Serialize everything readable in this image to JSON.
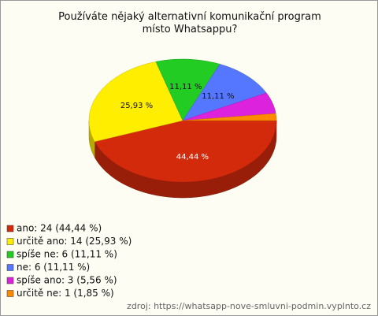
{
  "chart_data": {
    "type": "pie3d",
    "title": "Používáte nějaký alternativní komunikační program místo Whatsappu?",
    "categories": [
      "ano: 24 (44,44 %)",
      "určitě ano: 14 (25,93 %)",
      "spíše ne: 6 (11,11 %)",
      "ne: 6 (11,11 %)",
      "spíše ano: 3 (5,56 %)",
      "určitě ne: 1 (1,85 %)"
    ],
    "values": [
      44.44,
      25.93,
      11.11,
      11.11,
      5.56,
      1.85
    ],
    "value_labels": [
      "44,44 %",
      "25,93 %",
      "11,11 %",
      "11,11 %",
      null,
      null
    ],
    "colors": [
      "#d42a0c",
      "#ffee00",
      "#22cc22",
      "#5577ff",
      "#dd22dd",
      "#ff8a00"
    ],
    "source": "zdroj: https://whatsapp-nove-smluvni-podmin.vyplnto.cz"
  }
}
